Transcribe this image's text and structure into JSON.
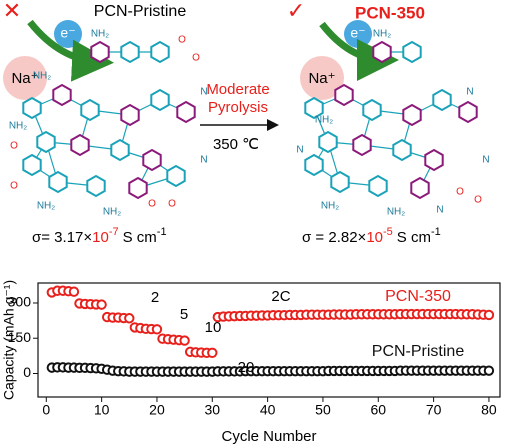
{
  "diagram": {
    "left": {
      "mark": "✕",
      "electron": "e⁻",
      "ion": "Na⁺",
      "title": "PCN-Pristine",
      "atoms": [
        "NH₂",
        "NH₂",
        "NH₂",
        "NH₂",
        "NH₂",
        "O",
        "O",
        "O",
        "O",
        "O",
        "O",
        "N",
        "N"
      ],
      "sigma": {
        "lead": "σ= 3.17×",
        "base": "10",
        "exp": "-7",
        "unit": "S cm",
        "unit_exp": "-1"
      }
    },
    "arrow": {
      "line1": "Moderate",
      "line2": "Pyrolysis",
      "temperature": "350 ℃"
    },
    "right": {
      "mark": "✓",
      "electron": "e⁻",
      "ion": "Na⁺",
      "title": "PCN-350",
      "atoms": [
        "NH₂",
        "NH₂",
        "NH₂",
        "NH₂",
        "N",
        "N",
        "N",
        "N",
        "O",
        "O"
      ],
      "sigma": {
        "lead": "σ = 2.82×",
        "base": "10",
        "exp": "-5",
        "unit": "S cm",
        "unit_exp": "-1"
      }
    }
  },
  "chart_data": {
    "type": "scatter",
    "xlabel": "Cycle Number",
    "ylabel": "Capacity (mAh g⁻¹)",
    "x": [
      1,
      2,
      3,
      4,
      5,
      6,
      7,
      8,
      9,
      10,
      11,
      12,
      13,
      14,
      15,
      16,
      17,
      18,
      19,
      20,
      21,
      22,
      23,
      24,
      25,
      26,
      27,
      28,
      29,
      30,
      31,
      32,
      33,
      34,
      35,
      36,
      37,
      38,
      39,
      40,
      41,
      42,
      43,
      44,
      45,
      46,
      47,
      48,
      49,
      50,
      51,
      52,
      53,
      54,
      55,
      56,
      57,
      58,
      59,
      60,
      61,
      62,
      63,
      64,
      65,
      66,
      67,
      68,
      69,
      70,
      71,
      72,
      73,
      74,
      75,
      76,
      77,
      78,
      79,
      80
    ],
    "series": [
      {
        "name": "PCN-350",
        "color": "#e8201c",
        "values": [
          345,
          352,
          352,
          350,
          348,
          298,
          296,
          295,
          294,
          293,
          240,
          238,
          238,
          236,
          235,
          196,
          193,
          190,
          189,
          188,
          148,
          146,
          144,
          142,
          140,
          92,
          90,
          89,
          88,
          88,
          240,
          242,
          243,
          244,
          245,
          245,
          246,
          246,
          247,
          247,
          248,
          248,
          248,
          249,
          249,
          249,
          250,
          250,
          250,
          250,
          250,
          251,
          251,
          251,
          251,
          252,
          252,
          252,
          252,
          252,
          252,
          252,
          252,
          253,
          253,
          253,
          253,
          253,
          253,
          253,
          253,
          253,
          253,
          253,
          252,
          252,
          252,
          251,
          250,
          249
        ]
      },
      {
        "name": "PCN-Pristine",
        "color": "#111111",
        "values": [
          25,
          26,
          26,
          25,
          25,
          24,
          24,
          23,
          22,
          20,
          16,
          12,
          10,
          9,
          8,
          8,
          8,
          8,
          8,
          8,
          8,
          8,
          8,
          8,
          8,
          8,
          8,
          8,
          8,
          8,
          9,
          9,
          9,
          9,
          9,
          10,
          10,
          10,
          10,
          10,
          10,
          10,
          10,
          10,
          10,
          10,
          10,
          10,
          10,
          10,
          11,
          11,
          11,
          11,
          11,
          11,
          11,
          11,
          11,
          11,
          11,
          11,
          11,
          12,
          12,
          12,
          12,
          12,
          12,
          12,
          12,
          12,
          12,
          12,
          12,
          12,
          12,
          12,
          12,
          12
        ]
      }
    ],
    "annotations": [
      "2",
      "5",
      "10",
      "20",
      "2C"
    ],
    "xlim": [
      -1.5,
      82
    ],
    "ylim": [
      -100,
      385
    ],
    "xticks": [
      0,
      10,
      20,
      30,
      40,
      50,
      60,
      70,
      80
    ],
    "yticks": [
      0,
      150,
      300
    ]
  }
}
